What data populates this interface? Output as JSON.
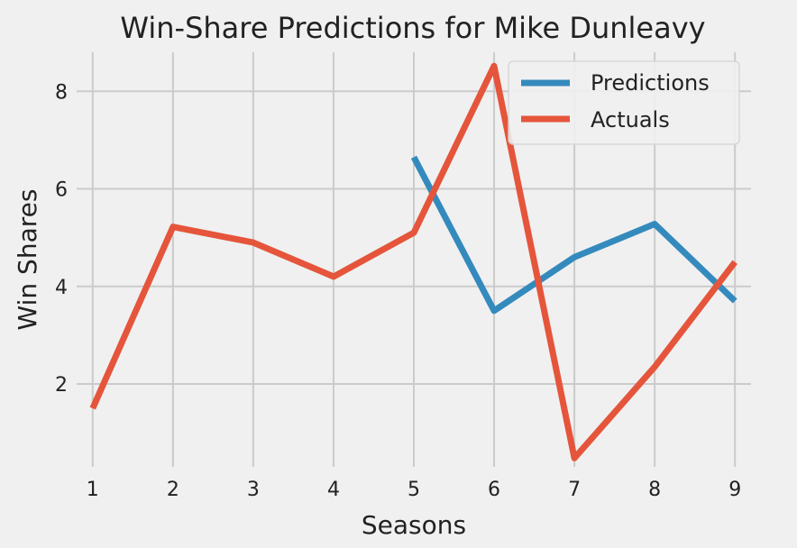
{
  "chart_data": {
    "type": "line",
    "title": "Win-Share Predictions for Mike Dunleavy",
    "xlabel": "Seasons",
    "ylabel": "Win Shares",
    "xlim": [
      0.8,
      9.2
    ],
    "ylim": [
      0.3,
      8.8
    ],
    "xticks": [
      1,
      2,
      3,
      4,
      5,
      6,
      7,
      8,
      9
    ],
    "yticks": [
      2,
      4,
      6,
      8
    ],
    "grid": true,
    "legend_position": "top-right",
    "series": [
      {
        "name": "Predictions",
        "color": "#348ABD",
        "x": [
          5,
          6,
          7,
          8,
          9
        ],
        "y": [
          6.65,
          3.5,
          4.6,
          5.28,
          3.7
        ]
      },
      {
        "name": "Actuals",
        "color": "#E5553B",
        "x": [
          1,
          2,
          3,
          4,
          5,
          6,
          7,
          8,
          9
        ],
        "y": [
          1.5,
          5.22,
          4.9,
          4.2,
          5.1,
          8.52,
          0.48,
          2.35,
          4.5
        ]
      }
    ]
  }
}
